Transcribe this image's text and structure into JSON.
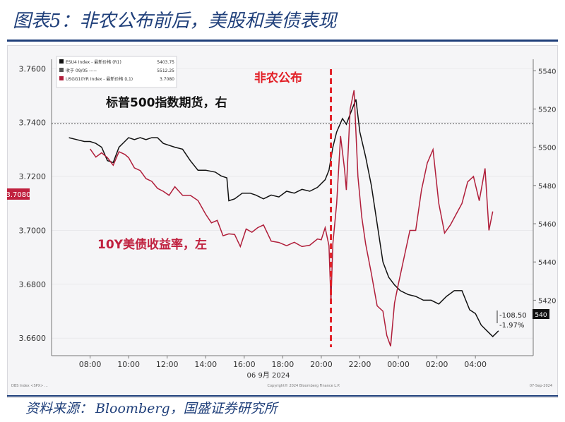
{
  "header": {
    "title": "图表5：非农公布前后，美股和美债表现"
  },
  "footer": {
    "source_label": "资料来源：",
    "source_text": "Bloomberg，国盛证券研究所"
  },
  "chart_data": {
    "type": "line",
    "xlabel": "06 9月 2024",
    "x_ticks": [
      "08:00",
      "10:00",
      "12:00",
      "14:00",
      "16:00",
      "18:00",
      "20:00",
      "22:00",
      "00:00",
      "02:00",
      "04:00"
    ],
    "y_left": {
      "ticks": [
        "3.7600",
        "3.7400",
        "3.7200",
        "3.7000",
        "3.6800",
        "3.6600"
      ],
      "range": [
        3.6535,
        3.7635
      ]
    },
    "y_right": {
      "ticks": [
        "5540",
        "5520",
        "5500",
        "5480",
        "5460",
        "5440",
        "5420"
      ],
      "range": [
        5391,
        5546
      ]
    },
    "legend": [
      {
        "name": "ESU4 Index - 最新价格 (R1)",
        "value": "5403.75",
        "color": "#111111"
      },
      {
        "name": "收于 09/05 -----",
        "value": "5512.25",
        "color": "#555555"
      },
      {
        "name": "USGG10YR Index - 最新价格 (L1)",
        "value": "3.7080",
        "color": "#b01e3a"
      }
    ],
    "annotations": {
      "event_label": "非农公布",
      "sp500_label": "标普500指数期货，右",
      "ust10y_label": "10Y美债收益率，左",
      "current_ust10y": "3.7080",
      "change_abs": "-108.50",
      "change_pct": "-1.97%",
      "right_edge_tag": "540"
    },
    "footer_left": "DBS Index <SPX> ...",
    "footer_center": "Copyright© 2024 Bloomberg Finance L.P.",
    "footer_right": "07-Sep-2024",
    "series": [
      {
        "name": "标普500指数期货，右",
        "axis": "right",
        "color": "#111111",
        "x": [
          6.9,
          7.3,
          7.7,
          8.0,
          8.3,
          8.6,
          8.9,
          9.2,
          9.5,
          9.8,
          10.0,
          10.3,
          10.6,
          10.9,
          11.2,
          11.5,
          11.8,
          12.1,
          12.4,
          12.8,
          13.2,
          13.6,
          14.0,
          14.5,
          14.8,
          15.1,
          15.2,
          15.5,
          15.9,
          16.3,
          16.6,
          17.0,
          17.4,
          17.8,
          18.2,
          18.6,
          19.0,
          19.4,
          19.8,
          20.2,
          20.4,
          20.6,
          20.8,
          21.1,
          21.3,
          21.6,
          21.8,
          22.0,
          22.3,
          22.6,
          22.9,
          23.2,
          23.5,
          23.8,
          24.1,
          24.5,
          24.9,
          25.3,
          25.7,
          26.1,
          26.5,
          26.9,
          27.3,
          27.7,
          28.0,
          28.3,
          28.6,
          28.9,
          29.2
        ],
        "values": [
          5505,
          5504,
          5503,
          5503,
          5502,
          5500,
          5493,
          5492,
          5500,
          5503,
          5505,
          5504,
          5505,
          5504,
          5505,
          5505,
          5502,
          5501,
          5500,
          5499,
          5493,
          5488,
          5488,
          5487,
          5485,
          5484,
          5472,
          5473,
          5476,
          5476,
          5475,
          5473,
          5475,
          5474,
          5477,
          5476,
          5478,
          5477,
          5479,
          5483,
          5488,
          5500,
          5508,
          5515,
          5512,
          5520,
          5525,
          5508,
          5495,
          5480,
          5460,
          5440,
          5432,
          5428,
          5425,
          5423,
          5422,
          5420,
          5420,
          5418,
          5422,
          5425,
          5425,
          5415,
          5413,
          5407,
          5404,
          5401,
          5404
        ]
      },
      {
        "name": "10Y美债收益率，左",
        "axis": "left",
        "color": "#b01e3a",
        "x": [
          8.0,
          8.3,
          8.6,
          8.9,
          9.2,
          9.5,
          9.8,
          10.0,
          10.3,
          10.6,
          10.9,
          11.2,
          11.5,
          11.8,
          12.1,
          12.4,
          12.8,
          13.2,
          13.6,
          14.0,
          14.3,
          14.6,
          14.9,
          15.2,
          15.5,
          15.8,
          16.1,
          16.4,
          16.7,
          17.0,
          17.4,
          17.8,
          18.2,
          18.6,
          19.0,
          19.4,
          19.8,
          20.0,
          20.2,
          20.4,
          20.5,
          20.6,
          20.8,
          21.0,
          21.2,
          21.3,
          21.5,
          21.7,
          21.9,
          22.1,
          22.3,
          22.6,
          22.9,
          23.2,
          23.4,
          23.6,
          23.8,
          24.0,
          24.3,
          24.6,
          24.9,
          25.2,
          25.5,
          25.8,
          26.1,
          26.4,
          26.7,
          27.0,
          27.3,
          27.6,
          27.9,
          28.2,
          28.5,
          28.7,
          28.9
        ],
        "values": [
          3.7302,
          3.7272,
          3.7288,
          3.727,
          3.7242,
          3.7292,
          3.7282,
          3.727,
          3.7232,
          3.7222,
          3.7192,
          3.7182,
          3.7156,
          3.7145,
          3.713,
          3.7162,
          3.713,
          3.713,
          3.7111,
          3.706,
          3.7028,
          3.7037,
          3.698,
          3.6987,
          3.6985,
          3.694,
          3.7005,
          3.6993,
          3.701,
          3.702,
          3.696,
          3.6955,
          3.6943,
          3.6956,
          3.694,
          3.6945,
          3.6968,
          3.6965,
          3.701,
          3.6943,
          3.6735,
          3.695,
          3.71,
          3.735,
          3.723,
          3.715,
          3.745,
          3.752,
          3.72,
          3.705,
          3.695,
          3.684,
          3.672,
          3.67,
          3.661,
          3.657,
          3.673,
          3.68,
          3.69,
          3.7,
          3.7,
          3.715,
          3.725,
          3.73,
          3.71,
          3.699,
          3.702,
          3.706,
          3.71,
          3.718,
          3.72,
          3.711,
          3.723,
          3.7,
          3.707
        ]
      }
    ],
    "reference_lines": {
      "prev_close_right": 5512.25,
      "event_x": 20.5
    }
  }
}
